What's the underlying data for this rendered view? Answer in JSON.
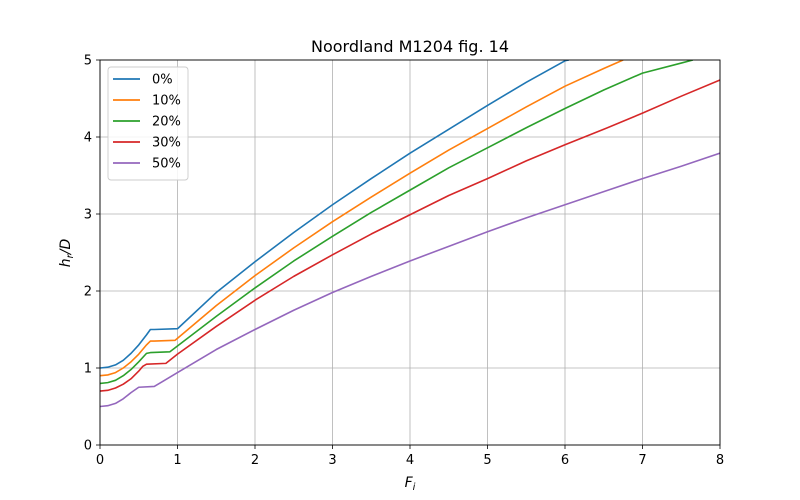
{
  "chart_data": {
    "type": "line",
    "title": "Noordland M1204 fig. 14",
    "xlabel_main": "F",
    "xlabel_sub": "i",
    "ylabel_main": "h",
    "ylabel_sub": "r",
    "ylabel_suffix": "/D",
    "xlim": [
      0,
      8
    ],
    "ylim": [
      0,
      5
    ],
    "xticks": [
      "0",
      "1",
      "2",
      "3",
      "4",
      "5",
      "6",
      "7",
      "8"
    ],
    "yticks": [
      "0",
      "1",
      "2",
      "3",
      "4",
      "5"
    ],
    "grid": true,
    "legend_position": "top-left",
    "series": [
      {
        "name": "0%",
        "color": "#1f77b4",
        "x": [
          0,
          0.1,
          0.2,
          0.3,
          0.4,
          0.5,
          0.6,
          0.65,
          0.7,
          1.0,
          1.5,
          2.0,
          2.5,
          3.0,
          3.5,
          4.0,
          4.5,
          5.0,
          5.5,
          6.0,
          6.05
        ],
        "y": [
          1.0,
          1.01,
          1.04,
          1.1,
          1.19,
          1.3,
          1.43,
          1.5,
          1.5,
          1.51,
          1.98,
          2.38,
          2.76,
          3.12,
          3.46,
          3.79,
          4.1,
          4.41,
          4.71,
          4.99,
          5.0
        ]
      },
      {
        "name": "10%",
        "color": "#ff7f0e",
        "x": [
          0,
          0.1,
          0.2,
          0.3,
          0.4,
          0.5,
          0.6,
          0.65,
          0.7,
          0.97,
          1.5,
          2.0,
          2.5,
          3.0,
          3.5,
          4.0,
          4.5,
          5.0,
          5.5,
          6.0,
          6.5,
          6.75
        ],
        "y": [
          0.9,
          0.91,
          0.94,
          1.0,
          1.08,
          1.18,
          1.3,
          1.35,
          1.35,
          1.36,
          1.81,
          2.2,
          2.56,
          2.9,
          3.22,
          3.53,
          3.83,
          4.11,
          4.39,
          4.66,
          4.89,
          5.0
        ]
      },
      {
        "name": "20%",
        "color": "#2ca02c",
        "x": [
          0,
          0.1,
          0.2,
          0.3,
          0.4,
          0.5,
          0.6,
          0.65,
          0.9,
          1.5,
          2.0,
          2.5,
          3.0,
          3.5,
          4.0,
          4.5,
          5.0,
          5.5,
          6.0,
          6.5,
          7.0,
          7.5,
          7.65
        ],
        "y": [
          0.8,
          0.81,
          0.84,
          0.9,
          0.98,
          1.08,
          1.19,
          1.2,
          1.21,
          1.67,
          2.04,
          2.39,
          2.71,
          3.02,
          3.31,
          3.6,
          3.86,
          4.12,
          4.37,
          4.61,
          4.83,
          4.96,
          5.0
        ]
      },
      {
        "name": "30%",
        "color": "#d62728",
        "x": [
          0,
          0.1,
          0.2,
          0.3,
          0.4,
          0.5,
          0.55,
          0.6,
          0.85,
          1.0,
          1.5,
          2.0,
          2.5,
          3.0,
          3.5,
          4.0,
          4.5,
          5.0,
          5.5,
          6.0,
          6.5,
          7.0,
          7.5,
          8.0
        ],
        "y": [
          0.7,
          0.71,
          0.74,
          0.79,
          0.86,
          0.96,
          1.02,
          1.05,
          1.06,
          1.18,
          1.54,
          1.88,
          2.19,
          2.47,
          2.74,
          2.99,
          3.24,
          3.46,
          3.69,
          3.9,
          4.1,
          4.31,
          4.53,
          4.74
        ]
      },
      {
        "name": "50%",
        "color": "#9467bd",
        "x": [
          0,
          0.1,
          0.2,
          0.3,
          0.4,
          0.5,
          0.7,
          1.0,
          1.5,
          2.0,
          2.5,
          3.0,
          3.5,
          4.0,
          4.5,
          5.0,
          5.5,
          6.0,
          6.5,
          7.0,
          7.5,
          8.0
        ],
        "y": [
          0.5,
          0.51,
          0.54,
          0.6,
          0.68,
          0.75,
          0.76,
          0.94,
          1.24,
          1.5,
          1.75,
          1.98,
          2.19,
          2.39,
          2.58,
          2.77,
          2.95,
          3.12,
          3.29,
          3.46,
          3.62,
          3.79
        ]
      }
    ]
  }
}
